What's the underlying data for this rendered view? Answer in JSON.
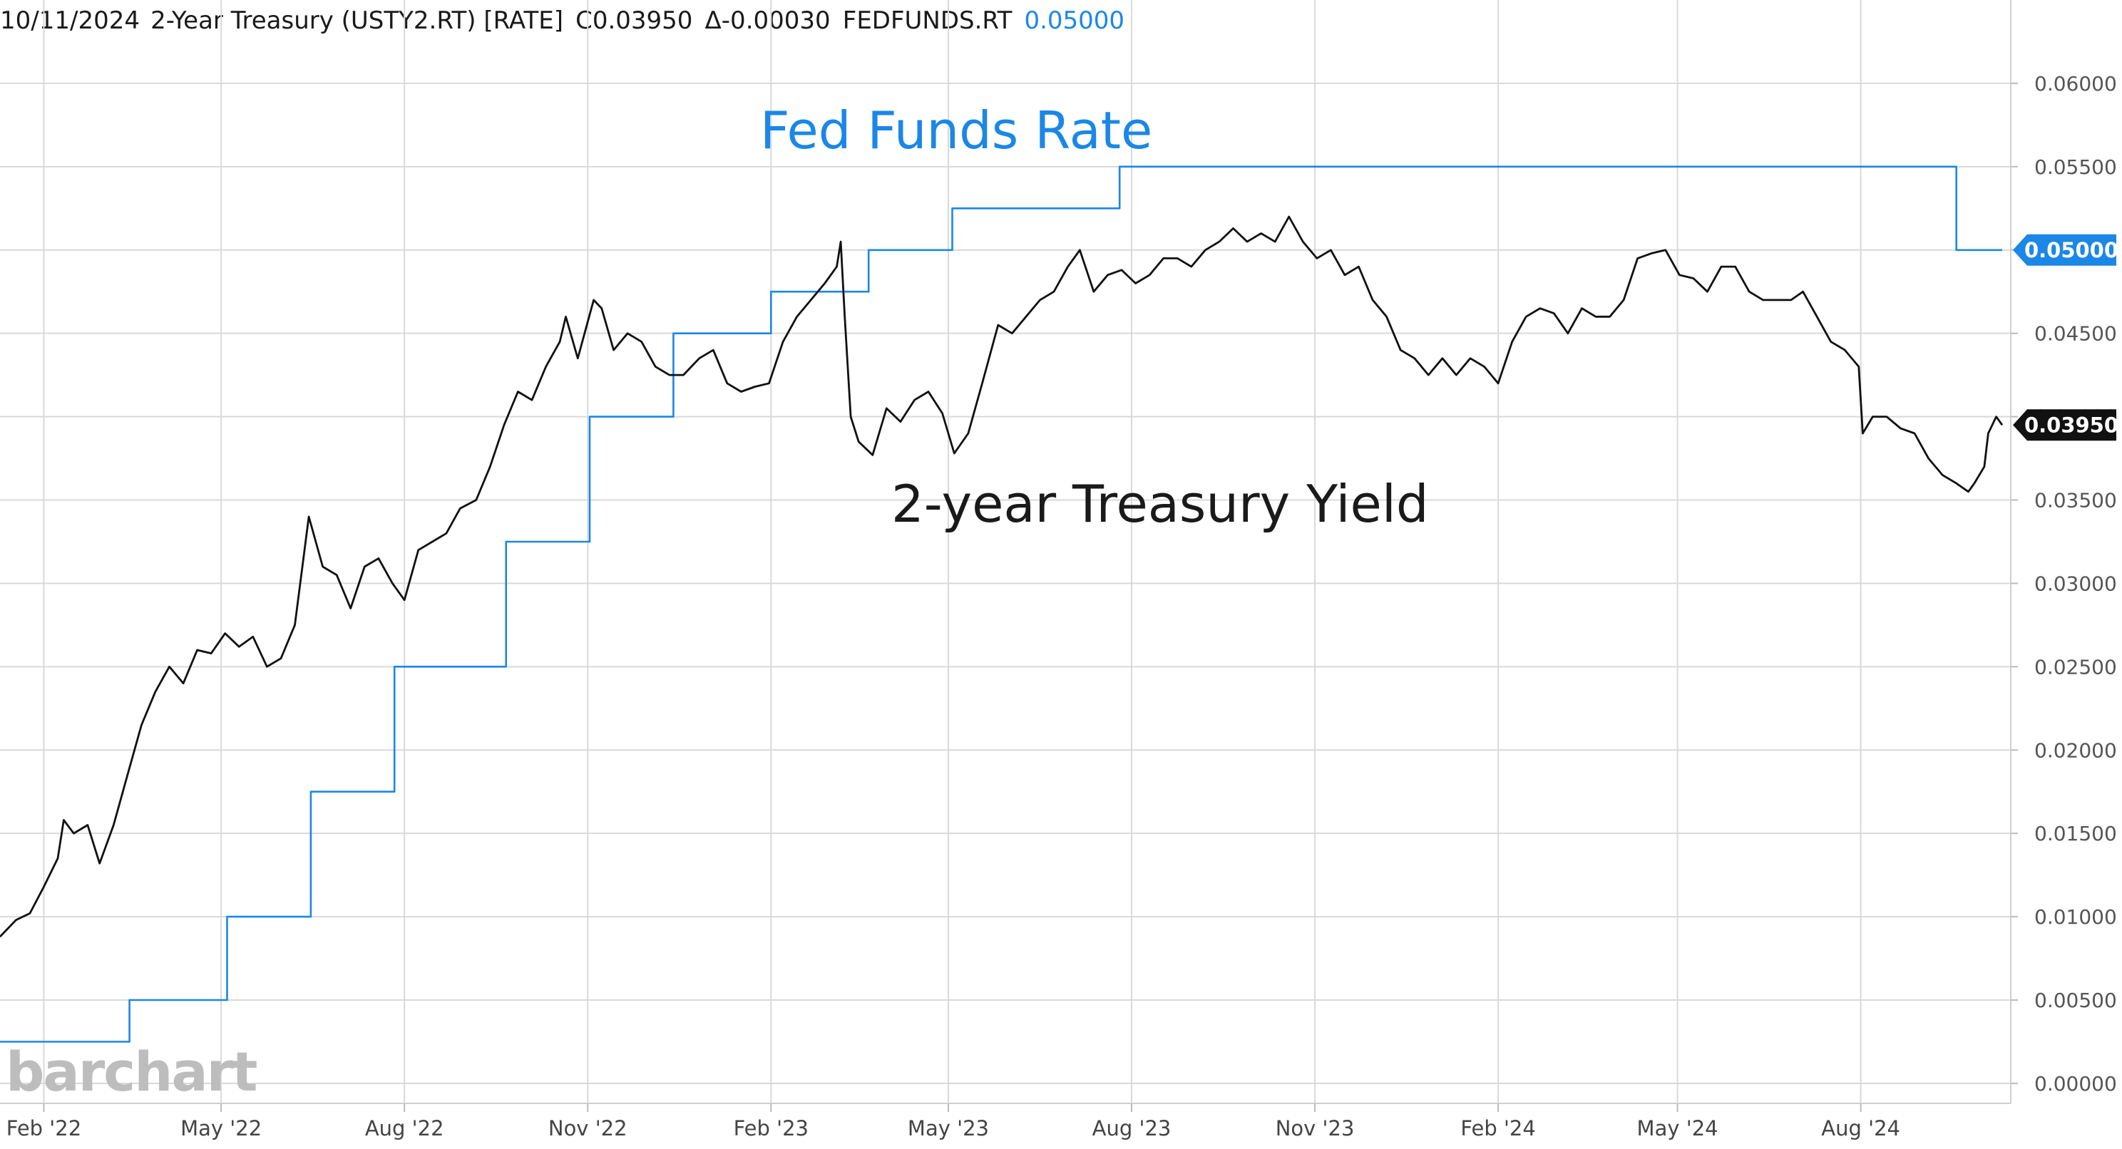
{
  "header": {
    "date": "10/11/2024",
    "instrument": "2-Year Treasury (USTY2.RT) [RATE]",
    "close": "C0.03950",
    "change": "Δ-0.00030",
    "fed_symbol": "FEDFUNDS.RT",
    "fed_value": "0.05000"
  },
  "brand": "barchart",
  "colors": {
    "treasury": "#111111",
    "fed": "#1b87e6",
    "grid": "#d9d9d9"
  },
  "chart_data": {
    "type": "line",
    "title": "",
    "xlabel": "",
    "ylabel": "",
    "x_range": [
      "2022-01-10",
      "2024-10-11"
    ],
    "ylim": [
      -0.0012,
      0.065
    ],
    "grid": true,
    "y_axis_side": "right",
    "y_ticks": [
      "0.00000",
      "0.00500",
      "0.01000",
      "0.01500",
      "0.02000",
      "0.02500",
      "0.03000",
      "0.03500",
      "0.04000",
      "0.04500",
      "0.05000",
      "0.05500",
      "0.06000"
    ],
    "x_ticks": [
      {
        "date": "2022-02-01",
        "label": "Feb '22"
      },
      {
        "date": "2022-05-01",
        "label": "May '22"
      },
      {
        "date": "2022-08-01",
        "label": "Aug '22"
      },
      {
        "date": "2022-11-01",
        "label": "Nov '22"
      },
      {
        "date": "2023-02-01",
        "label": "Feb '23"
      },
      {
        "date": "2023-05-01",
        "label": "May '23"
      },
      {
        "date": "2023-08-01",
        "label": "Aug '23"
      },
      {
        "date": "2023-11-01",
        "label": "Nov '23"
      },
      {
        "date": "2024-02-01",
        "label": "Feb '24"
      },
      {
        "date": "2024-05-01",
        "label": "May '24"
      },
      {
        "date": "2024-08-01",
        "label": "Aug '24"
      }
    ],
    "annotations": [
      {
        "text": "Fed Funds Rate",
        "series": "fed"
      },
      {
        "text": "2-year Treasury Yield",
        "series": "treasury"
      }
    ],
    "series": [
      {
        "key": "fed",
        "last_label": "0.05000",
        "points": [
          [
            "2022-01-10",
            0.0025
          ],
          [
            "2022-03-16",
            0.0025
          ],
          [
            "2022-03-16",
            0.005
          ],
          [
            "2022-05-04",
            0.005
          ],
          [
            "2022-05-04",
            0.01
          ],
          [
            "2022-06-15",
            0.01
          ],
          [
            "2022-06-15",
            0.0175
          ],
          [
            "2022-07-27",
            0.0175
          ],
          [
            "2022-07-27",
            0.025
          ],
          [
            "2022-09-21",
            0.025
          ],
          [
            "2022-09-21",
            0.0325
          ],
          [
            "2022-11-02",
            0.0325
          ],
          [
            "2022-11-02",
            0.04
          ],
          [
            "2022-12-14",
            0.04
          ],
          [
            "2022-12-14",
            0.045
          ],
          [
            "2023-02-01",
            0.045
          ],
          [
            "2023-02-01",
            0.0475
          ],
          [
            "2023-03-22",
            0.0475
          ],
          [
            "2023-03-22",
            0.05
          ],
          [
            "2023-05-03",
            0.05
          ],
          [
            "2023-05-03",
            0.0525
          ],
          [
            "2023-07-26",
            0.0525
          ],
          [
            "2023-07-26",
            0.055
          ],
          [
            "2024-09-18",
            0.055
          ],
          [
            "2024-09-18",
            0.05
          ],
          [
            "2024-10-11",
            0.05
          ]
        ]
      },
      {
        "key": "treasury",
        "last_label": "0.03950",
        "points": [
          [
            "2022-01-10",
            0.0088
          ],
          [
            "2022-01-18",
            0.0098
          ],
          [
            "2022-01-25",
            0.0102
          ],
          [
            "2022-02-01",
            0.0118
          ],
          [
            "2022-02-08",
            0.0135
          ],
          [
            "2022-02-11",
            0.0158
          ],
          [
            "2022-02-16",
            0.015
          ],
          [
            "2022-02-23",
            0.0155
          ],
          [
            "2022-03-01",
            0.0132
          ],
          [
            "2022-03-08",
            0.0155
          ],
          [
            "2022-03-15",
            0.0185
          ],
          [
            "2022-03-22",
            0.0215
          ],
          [
            "2022-03-29",
            0.0235
          ],
          [
            "2022-04-05",
            0.025
          ],
          [
            "2022-04-12",
            0.024
          ],
          [
            "2022-04-19",
            0.026
          ],
          [
            "2022-04-26",
            0.0258
          ],
          [
            "2022-05-03",
            0.027
          ],
          [
            "2022-05-10",
            0.0262
          ],
          [
            "2022-05-17",
            0.0268
          ],
          [
            "2022-05-24",
            0.025
          ],
          [
            "2022-05-31",
            0.0255
          ],
          [
            "2022-06-07",
            0.0275
          ],
          [
            "2022-06-14",
            0.034
          ],
          [
            "2022-06-21",
            0.031
          ],
          [
            "2022-06-28",
            0.0305
          ],
          [
            "2022-07-05",
            0.0285
          ],
          [
            "2022-07-12",
            0.031
          ],
          [
            "2022-07-19",
            0.0315
          ],
          [
            "2022-07-26",
            0.03
          ],
          [
            "2022-08-01",
            0.029
          ],
          [
            "2022-08-08",
            0.032
          ],
          [
            "2022-08-15",
            0.0325
          ],
          [
            "2022-08-22",
            0.033
          ],
          [
            "2022-08-29",
            0.0345
          ],
          [
            "2022-09-06",
            0.035
          ],
          [
            "2022-09-13",
            0.037
          ],
          [
            "2022-09-20",
            0.0395
          ],
          [
            "2022-09-27",
            0.0415
          ],
          [
            "2022-10-04",
            0.041
          ],
          [
            "2022-10-11",
            0.043
          ],
          [
            "2022-10-18",
            0.0445
          ],
          [
            "2022-10-21",
            0.046
          ],
          [
            "2022-10-27",
            0.0435
          ],
          [
            "2022-11-04",
            0.047
          ],
          [
            "2022-11-08",
            0.0465
          ],
          [
            "2022-11-14",
            0.044
          ],
          [
            "2022-11-21",
            0.045
          ],
          [
            "2022-11-28",
            0.0445
          ],
          [
            "2022-12-05",
            0.043
          ],
          [
            "2022-12-12",
            0.0425
          ],
          [
            "2022-12-19",
            0.0425
          ],
          [
            "2022-12-27",
            0.0435
          ],
          [
            "2023-01-03",
            0.044
          ],
          [
            "2023-01-10",
            0.042
          ],
          [
            "2023-01-17",
            0.0415
          ],
          [
            "2023-01-24",
            0.0418
          ],
          [
            "2023-01-31",
            0.042
          ],
          [
            "2023-02-07",
            0.0445
          ],
          [
            "2023-02-14",
            0.046
          ],
          [
            "2023-02-21",
            0.047
          ],
          [
            "2023-02-28",
            0.048
          ],
          [
            "2023-03-06",
            0.049
          ],
          [
            "2023-03-08",
            0.0505
          ],
          [
            "2023-03-10",
            0.046
          ],
          [
            "2023-03-13",
            0.04
          ],
          [
            "2023-03-17",
            0.0385
          ],
          [
            "2023-03-24",
            0.0377
          ],
          [
            "2023-03-31",
            0.0405
          ],
          [
            "2023-04-07",
            0.0397
          ],
          [
            "2023-04-14",
            0.041
          ],
          [
            "2023-04-21",
            0.0415
          ],
          [
            "2023-04-28",
            0.0402
          ],
          [
            "2023-05-04",
            0.0378
          ],
          [
            "2023-05-11",
            0.039
          ],
          [
            "2023-05-18",
            0.042
          ],
          [
            "2023-05-26",
            0.0455
          ],
          [
            "2023-06-02",
            0.045
          ],
          [
            "2023-06-09",
            0.046
          ],
          [
            "2023-06-16",
            0.047
          ],
          [
            "2023-06-23",
            0.0475
          ],
          [
            "2023-06-30",
            0.049
          ],
          [
            "2023-07-06",
            0.05
          ],
          [
            "2023-07-13",
            0.0475
          ],
          [
            "2023-07-20",
            0.0485
          ],
          [
            "2023-07-27",
            0.0488
          ],
          [
            "2023-08-03",
            0.048
          ],
          [
            "2023-08-10",
            0.0485
          ],
          [
            "2023-08-17",
            0.0495
          ],
          [
            "2023-08-24",
            0.0495
          ],
          [
            "2023-08-31",
            0.049
          ],
          [
            "2023-09-07",
            0.05
          ],
          [
            "2023-09-14",
            0.0505
          ],
          [
            "2023-09-21",
            0.0513
          ],
          [
            "2023-09-28",
            0.0505
          ],
          [
            "2023-10-05",
            0.051
          ],
          [
            "2023-10-12",
            0.0505
          ],
          [
            "2023-10-19",
            0.052
          ],
          [
            "2023-10-26",
            0.0505
          ],
          [
            "2023-11-02",
            0.0495
          ],
          [
            "2023-11-09",
            0.05
          ],
          [
            "2023-11-16",
            0.0485
          ],
          [
            "2023-11-23",
            0.049
          ],
          [
            "2023-11-30",
            0.047
          ],
          [
            "2023-12-07",
            0.046
          ],
          [
            "2023-12-14",
            0.044
          ],
          [
            "2023-12-21",
            0.0435
          ],
          [
            "2023-12-28",
            0.0425
          ],
          [
            "2024-01-04",
            0.0435
          ],
          [
            "2024-01-11",
            0.0425
          ],
          [
            "2024-01-18",
            0.0435
          ],
          [
            "2024-01-25",
            0.043
          ],
          [
            "2024-02-01",
            0.042
          ],
          [
            "2024-02-08",
            0.0445
          ],
          [
            "2024-02-15",
            0.046
          ],
          [
            "2024-02-22",
            0.0465
          ],
          [
            "2024-02-29",
            0.0462
          ],
          [
            "2024-03-07",
            0.045
          ],
          [
            "2024-03-14",
            0.0465
          ],
          [
            "2024-03-21",
            0.046
          ],
          [
            "2024-03-28",
            0.046
          ],
          [
            "2024-04-04",
            0.047
          ],
          [
            "2024-04-11",
            0.0495
          ],
          [
            "2024-04-18",
            0.0498
          ],
          [
            "2024-04-25",
            0.05
          ],
          [
            "2024-05-02",
            0.0485
          ],
          [
            "2024-05-09",
            0.0483
          ],
          [
            "2024-05-16",
            0.0475
          ],
          [
            "2024-05-23",
            0.049
          ],
          [
            "2024-05-30",
            0.049
          ],
          [
            "2024-06-06",
            0.0475
          ],
          [
            "2024-06-13",
            0.047
          ],
          [
            "2024-06-20",
            0.047
          ],
          [
            "2024-06-27",
            0.047
          ],
          [
            "2024-07-03",
            0.0475
          ],
          [
            "2024-07-10",
            0.046
          ],
          [
            "2024-07-17",
            0.0445
          ],
          [
            "2024-07-24",
            0.044
          ],
          [
            "2024-07-31",
            0.043
          ],
          [
            "2024-08-02",
            0.039
          ],
          [
            "2024-08-07",
            0.04
          ],
          [
            "2024-08-14",
            0.04
          ],
          [
            "2024-08-21",
            0.0393
          ],
          [
            "2024-08-28",
            0.039
          ],
          [
            "2024-09-04",
            0.0375
          ],
          [
            "2024-09-11",
            0.0365
          ],
          [
            "2024-09-18",
            0.036
          ],
          [
            "2024-09-24",
            0.0355
          ],
          [
            "2024-09-27",
            0.036
          ],
          [
            "2024-10-02",
            0.037
          ],
          [
            "2024-10-04",
            0.039
          ],
          [
            "2024-10-08",
            0.04
          ],
          [
            "2024-10-11",
            0.0395
          ]
        ]
      }
    ]
  }
}
